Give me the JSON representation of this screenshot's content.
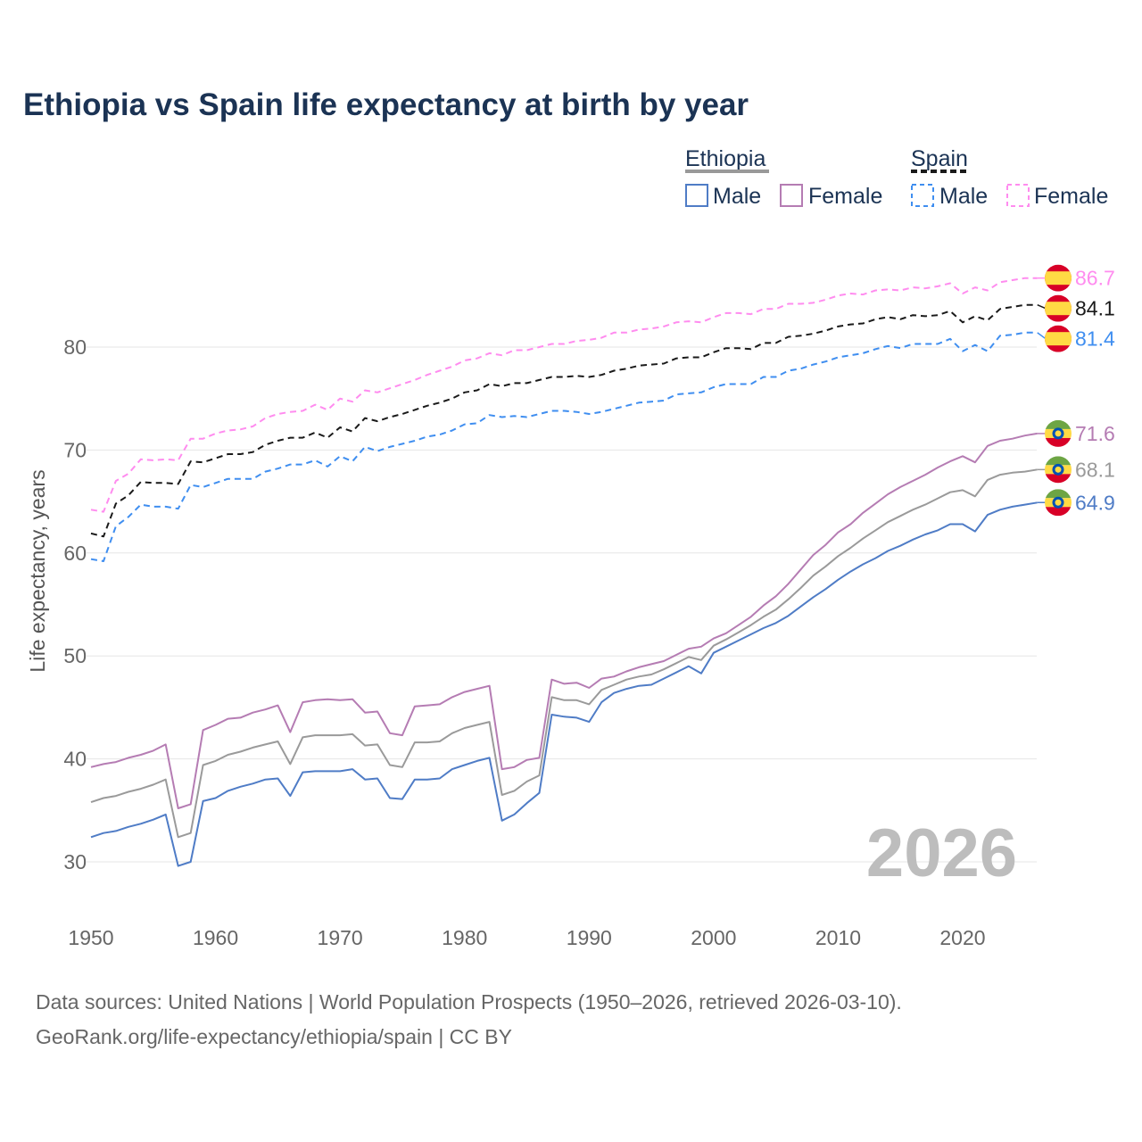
{
  "chart_data": {
    "type": "line",
    "title": "Ethiopia vs Spain life expectancy at birth by year",
    "xlabel": "",
    "ylabel": "Life expectancy, years",
    "xlim": [
      1950,
      2026
    ],
    "ylim": [
      25,
      90
    ],
    "x_ticks": [
      1950,
      1960,
      1970,
      1980,
      1990,
      2000,
      2010,
      2020
    ],
    "y_ticks": [
      30,
      40,
      50,
      60,
      70,
      80
    ],
    "grid": true,
    "watermark_year": "2026",
    "legend": {
      "placement": "top-right",
      "groups": [
        {
          "name": "Ethiopia",
          "items": [
            "Male",
            "Female"
          ]
        },
        {
          "name": "Spain",
          "items": [
            "Male",
            "Female"
          ]
        }
      ]
    },
    "x_start": 1950,
    "series": [
      {
        "name": "Ethiopia Male",
        "country": "Ethiopia",
        "color": "#4f7cc6",
        "dash": false,
        "end_label": "64.9",
        "values": [
          32.4,
          32.8,
          33.0,
          33.4,
          33.7,
          34.1,
          34.6,
          29.6,
          30.0,
          35.9,
          36.2,
          36.9,
          37.3,
          37.6,
          38.0,
          38.1,
          36.4,
          38.7,
          38.8,
          38.8,
          38.8,
          39.0,
          38.0,
          38.1,
          36.2,
          36.1,
          38.0,
          38.0,
          38.1,
          39.0,
          39.4,
          39.8,
          40.1,
          34.0,
          34.6,
          35.7,
          36.7,
          44.3,
          44.1,
          44.0,
          43.6,
          45.5,
          46.4,
          46.8,
          47.1,
          47.2,
          47.8,
          48.4,
          49.0,
          48.3,
          50.3,
          50.9,
          51.5,
          52.1,
          52.7,
          53.2,
          53.9,
          54.8,
          55.7,
          56.5,
          57.4,
          58.2,
          58.9,
          59.5,
          60.2,
          60.7,
          61.3,
          61.8,
          62.2,
          62.8,
          62.8,
          62.1,
          63.7,
          64.2,
          64.5,
          64.7,
          64.9
        ]
      },
      {
        "name": "Ethiopia Female",
        "country": "Ethiopia",
        "color": "#b57cb3",
        "dash": false,
        "end_label": "71.6",
        "values": [
          39.2,
          39.5,
          39.7,
          40.1,
          40.4,
          40.8,
          41.4,
          35.2,
          35.6,
          42.8,
          43.3,
          43.9,
          44.0,
          44.5,
          44.8,
          45.2,
          42.6,
          45.5,
          45.7,
          45.8,
          45.7,
          45.8,
          44.5,
          44.6,
          42.5,
          42.3,
          45.1,
          45.2,
          45.3,
          46.0,
          46.5,
          46.8,
          47.1,
          39.0,
          39.2,
          39.9,
          40.1,
          47.7,
          47.3,
          47.4,
          46.9,
          47.8,
          48.0,
          48.5,
          48.9,
          49.2,
          49.5,
          50.1,
          50.7,
          50.9,
          51.7,
          52.2,
          53.0,
          53.8,
          54.9,
          55.8,
          57.0,
          58.4,
          59.8,
          60.8,
          62.0,
          62.8,
          63.9,
          64.8,
          65.7,
          66.4,
          67.0,
          67.6,
          68.3,
          68.9,
          69.4,
          68.8,
          70.4,
          70.9,
          71.1,
          71.4,
          71.6
        ]
      },
      {
        "name": "Ethiopia Total",
        "country": "Ethiopia",
        "color": "#9a9a9a",
        "dash": false,
        "end_label": "68.1",
        "values": [
          35.8,
          36.2,
          36.4,
          36.8,
          37.1,
          37.5,
          38.0,
          32.4,
          32.8,
          39.4,
          39.8,
          40.4,
          40.7,
          41.1,
          41.4,
          41.7,
          39.5,
          42.1,
          42.3,
          42.3,
          42.3,
          42.4,
          41.3,
          41.4,
          39.4,
          39.2,
          41.6,
          41.6,
          41.7,
          42.5,
          43.0,
          43.3,
          43.6,
          36.5,
          36.9,
          37.8,
          38.4,
          46.0,
          45.7,
          45.7,
          45.3,
          46.7,
          47.2,
          47.7,
          48.0,
          48.2,
          48.7,
          49.3,
          49.9,
          49.6,
          51.0,
          51.6,
          52.3,
          53.0,
          53.8,
          54.5,
          55.5,
          56.6,
          57.8,
          58.7,
          59.7,
          60.5,
          61.4,
          62.2,
          63.0,
          63.6,
          64.2,
          64.7,
          65.3,
          65.9,
          66.1,
          65.5,
          67.1,
          67.6,
          67.8,
          67.9,
          68.1
        ]
      },
      {
        "name": "Spain Male",
        "country": "Spain",
        "color": "#3f8ef0",
        "dash": true,
        "end_label": "81.4",
        "values": [
          59.4,
          59.2,
          62.6,
          63.5,
          64.7,
          64.5,
          64.5,
          64.3,
          66.6,
          66.4,
          66.8,
          67.2,
          67.2,
          67.2,
          67.9,
          68.2,
          68.6,
          68.6,
          69.0,
          68.4,
          69.4,
          68.9,
          70.3,
          69.9,
          70.3,
          70.6,
          70.9,
          71.3,
          71.5,
          71.9,
          72.5,
          72.6,
          73.4,
          73.2,
          73.3,
          73.2,
          73.5,
          73.8,
          73.8,
          73.7,
          73.5,
          73.7,
          74.0,
          74.3,
          74.6,
          74.7,
          74.8,
          75.4,
          75.5,
          75.6,
          76.1,
          76.4,
          76.4,
          76.4,
          77.1,
          77.1,
          77.7,
          77.9,
          78.3,
          78.6,
          79.0,
          79.2,
          79.4,
          79.8,
          80.1,
          79.9,
          80.3,
          80.3,
          80.3,
          80.8,
          79.6,
          80.2,
          79.6,
          81.1,
          81.2,
          81.4,
          81.4
        ]
      },
      {
        "name": "Spain Female",
        "country": "Spain",
        "color": "#ff8cef",
        "dash": true,
        "end_label": "86.7",
        "values": [
          64.2,
          64.0,
          67.0,
          67.7,
          69.1,
          69.0,
          69.1,
          69.0,
          71.1,
          71.1,
          71.6,
          71.9,
          72.0,
          72.3,
          73.1,
          73.5,
          73.7,
          73.8,
          74.4,
          73.9,
          75.0,
          74.7,
          75.8,
          75.6,
          76.0,
          76.4,
          76.8,
          77.3,
          77.7,
          78.1,
          78.7,
          78.9,
          79.4,
          79.2,
          79.7,
          79.7,
          80.0,
          80.3,
          80.3,
          80.6,
          80.7,
          80.9,
          81.4,
          81.4,
          81.7,
          81.8,
          82.0,
          82.4,
          82.5,
          82.4,
          82.9,
          83.3,
          83.3,
          83.2,
          83.7,
          83.7,
          84.2,
          84.2,
          84.3,
          84.6,
          85.0,
          85.2,
          85.1,
          85.5,
          85.6,
          85.5,
          85.8,
          85.7,
          85.9,
          86.2,
          85.2,
          85.8,
          85.5,
          86.3,
          86.5,
          86.7,
          86.7
        ]
      },
      {
        "name": "Spain Total",
        "country": "Spain",
        "color": "#1a1a1a",
        "dash": true,
        "end_label": "84.1",
        "values": [
          61.9,
          61.6,
          64.8,
          65.6,
          66.9,
          66.8,
          66.8,
          66.7,
          68.9,
          68.8,
          69.2,
          69.6,
          69.6,
          69.8,
          70.5,
          70.9,
          71.2,
          71.2,
          71.7,
          71.2,
          72.2,
          71.8,
          73.1,
          72.8,
          73.2,
          73.5,
          73.9,
          74.3,
          74.6,
          75.0,
          75.6,
          75.8,
          76.4,
          76.2,
          76.5,
          76.5,
          76.8,
          77.1,
          77.1,
          77.2,
          77.1,
          77.3,
          77.7,
          77.9,
          78.2,
          78.3,
          78.4,
          78.9,
          79.0,
          79.0,
          79.5,
          79.9,
          79.9,
          79.8,
          80.4,
          80.4,
          81.0,
          81.1,
          81.3,
          81.6,
          82.0,
          82.2,
          82.3,
          82.7,
          82.9,
          82.7,
          83.1,
          83.0,
          83.1,
          83.5,
          82.4,
          83.0,
          82.6,
          83.7,
          83.9,
          84.1,
          84.1
        ]
      }
    ]
  },
  "footer": {
    "source_line": "Data sources: United Nations | World Population Prospects (1950–2026, retrieved 2026-03-10).",
    "credit_line": "GeoRank.org/life-expectancy/ethiopia/spain | CC BY"
  }
}
